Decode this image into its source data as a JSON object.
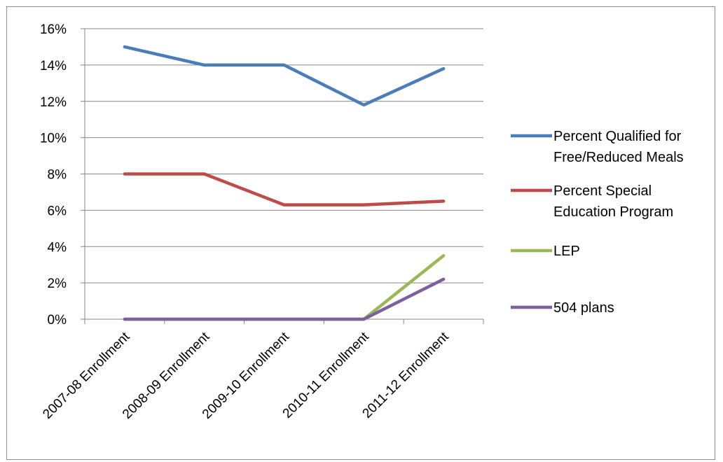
{
  "chart_data": {
    "type": "line",
    "categories": [
      "2007-08 Enrollment",
      "2008-09 Enrollment",
      "2009-10 Enrollment",
      "2010-11 Enrollment",
      "2011-12 Enrollment"
    ],
    "ylim": [
      0,
      16
    ],
    "yticks": [
      "0%",
      "2%",
      "4%",
      "6%",
      "8%",
      "10%",
      "12%",
      "14%",
      "16%"
    ],
    "grid": true,
    "legend_position": "right",
    "series": [
      {
        "name": "Percent Qualified for Free/Reduced Meals",
        "legend_lines": [
          "Percent Qualified for",
          "Free/Reduced Meals"
        ],
        "color": "#4a7ebb",
        "values": [
          15.0,
          14.0,
          14.0,
          11.8,
          13.8
        ]
      },
      {
        "name": "Percent Special Education Program",
        "legend_lines": [
          "Percent Special",
          "Education Program"
        ],
        "color": "#be4b48",
        "values": [
          8.0,
          8.0,
          6.3,
          6.3,
          6.5
        ]
      },
      {
        "name": "LEP",
        "legend_lines": [
          "LEP"
        ],
        "color": "#98b954",
        "values": [
          0,
          0,
          0,
          0,
          3.5
        ]
      },
      {
        "name": "504 plans",
        "legend_lines": [
          "504 plans"
        ],
        "color": "#7d60a0",
        "values": [
          0,
          0,
          0,
          0,
          2.2
        ]
      }
    ]
  }
}
